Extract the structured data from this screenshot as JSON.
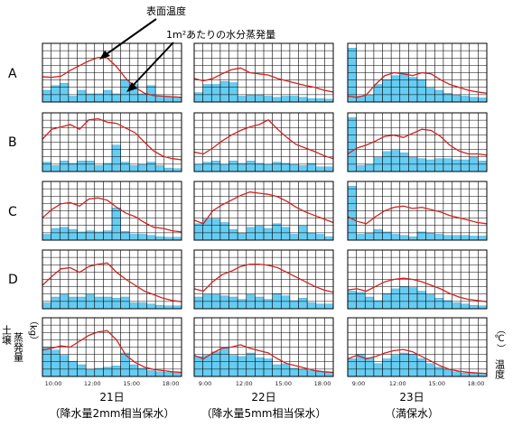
{
  "annotations": {
    "surface_temp": "表面温度",
    "evaporation": "1m²あたりの水分蒸発量"
  },
  "left_axis_label": {
    "line1": "土壌",
    "line2": "蒸発量",
    "unit": "（kg）"
  },
  "right_axis_label": {
    "line1": "温度",
    "unit": "（℃）"
  },
  "colors": {
    "bar": "#66ccf2",
    "bar_edge": "#2f9fd6",
    "line": "#d42020",
    "grid": "#000000"
  },
  "chart_data": {
    "type": "bar+line small multiples",
    "rows": [
      "A",
      "B",
      "C",
      "D",
      ""
    ],
    "columns": [
      {
        "date": "21日",
        "condition": "（降水量2mm相当保水）",
        "x_ticks": [
          "10:00",
          "12:00",
          "15:00",
          "18:00"
        ]
      },
      {
        "date": "22日",
        "condition": "（降水量5mm相当保水）",
        "x_ticks": [
          "9:00",
          "12:00",
          "15:00",
          "18:00"
        ]
      },
      {
        "date": "23日",
        "condition": "（満保水）",
        "x_ticks": [
          "9:00",
          "12:00",
          "15:00",
          "18:00"
        ]
      }
    ],
    "panels": [
      [
        {
          "bars": [
            0.2,
            0.28,
            0.32,
            0.1,
            0.2,
            0.14,
            0.14,
            0.2,
            0.14,
            0.38,
            0.3,
            0.14,
            0.28,
            0.1,
            0.08,
            0.08
          ],
          "line": [
            0.43,
            0.42,
            0.44,
            0.54,
            0.62,
            0.7,
            0.76,
            0.75,
            0.6,
            0.4,
            0.25,
            0.15,
            0.11,
            0.1,
            0.09,
            0.08
          ]
        },
        {
          "bars": [
            0.16,
            0.3,
            0.3,
            0.35,
            0.33,
            0.1,
            0.12,
            0.12,
            0.1,
            0.08,
            0.1,
            0.1,
            0.08,
            0.06,
            0.06,
            0.05
          ],
          "line": [
            0.4,
            0.36,
            0.4,
            0.48,
            0.55,
            0.58,
            0.5,
            0.48,
            0.46,
            0.4,
            0.36,
            0.32,
            0.28,
            0.25,
            0.2,
            0.17
          ]
        },
        {
          "bars": [
            0.92,
            0.1,
            0.12,
            0.3,
            0.38,
            0.45,
            0.5,
            0.42,
            0.38,
            0.25,
            0.2,
            0.15,
            0.12,
            0.1,
            0.08,
            0.07
          ],
          "line": [
            0.1,
            0.08,
            0.12,
            0.3,
            0.45,
            0.5,
            0.48,
            0.45,
            0.5,
            0.48,
            0.38,
            0.3,
            0.25,
            0.2,
            0.17,
            0.15
          ]
        }
      ],
      [
        {
          "bars": [
            0.16,
            0.1,
            0.18,
            0.14,
            0.18,
            0.18,
            0.1,
            0.14,
            0.45,
            0.16,
            0.1,
            0.12,
            0.16,
            0.1,
            0.06,
            0.05
          ],
          "line": [
            0.55,
            0.72,
            0.76,
            0.8,
            0.72,
            0.88,
            0.9,
            0.84,
            0.82,
            0.74,
            0.66,
            0.5,
            0.35,
            0.26,
            0.22,
            0.2
          ]
        },
        {
          "bars": [
            0.12,
            0.16,
            0.18,
            0.12,
            0.18,
            0.14,
            0.18,
            0.14,
            0.12,
            0.16,
            0.14,
            0.12,
            0.1,
            0.14,
            0.08,
            0.08
          ],
          "line": [
            0.33,
            0.3,
            0.4,
            0.52,
            0.62,
            0.7,
            0.76,
            0.8,
            0.88,
            0.72,
            0.58,
            0.46,
            0.4,
            0.34,
            0.27,
            0.22
          ]
        },
        {
          "bars": [
            0.92,
            0.1,
            0.12,
            0.25,
            0.34,
            0.36,
            0.32,
            0.24,
            0.22,
            0.2,
            0.22,
            0.22,
            0.2,
            0.2,
            0.24,
            0.18
          ],
          "line": [
            0.3,
            0.4,
            0.45,
            0.52,
            0.6,
            0.62,
            0.58,
            0.65,
            0.72,
            0.7,
            0.6,
            0.45,
            0.35,
            0.3,
            0.3,
            0.28
          ]
        }
      ],
      [
        {
          "bars": [
            0.1,
            0.2,
            0.22,
            0.18,
            0.14,
            0.16,
            0.14,
            0.16,
            0.55,
            0.15,
            0.1,
            0.1,
            0.08,
            0.06,
            0.05,
            0.05
          ],
          "line": [
            0.38,
            0.52,
            0.62,
            0.64,
            0.58,
            0.7,
            0.72,
            0.68,
            0.56,
            0.46,
            0.4,
            0.3,
            0.22,
            0.2,
            0.16,
            0.14
          ]
        },
        {
          "bars": [
            0.28,
            0.36,
            0.36,
            0.3,
            0.18,
            0.12,
            0.22,
            0.24,
            0.2,
            0.28,
            0.22,
            0.1,
            0.24,
            0.12,
            0.1,
            0.06
          ],
          "line": [
            0.34,
            0.28,
            0.5,
            0.6,
            0.68,
            0.76,
            0.82,
            0.8,
            0.78,
            0.74,
            0.66,
            0.56,
            0.48,
            0.42,
            0.36,
            0.3
          ]
        },
        {
          "bars": [
            0.92,
            0.1,
            0.12,
            0.18,
            0.14,
            0.1,
            0.08,
            0.06,
            0.14,
            0.12,
            0.1,
            0.08,
            0.08,
            0.08,
            0.07,
            0.07
          ],
          "line": [
            0.4,
            0.32,
            0.28,
            0.4,
            0.5,
            0.56,
            0.58,
            0.54,
            0.56,
            0.52,
            0.48,
            0.42,
            0.38,
            0.34,
            0.3,
            0.28
          ]
        }
      ],
      [
        {
          "bars": [
            0.1,
            0.2,
            0.24,
            0.2,
            0.2,
            0.24,
            0.2,
            0.2,
            0.18,
            0.2,
            0.1,
            0.1,
            0.08,
            0.06,
            0.05,
            0.05
          ],
          "line": [
            0.4,
            0.55,
            0.68,
            0.7,
            0.62,
            0.72,
            0.76,
            0.78,
            0.62,
            0.5,
            0.4,
            0.3,
            0.24,
            0.18,
            0.14,
            0.12
          ]
        },
        {
          "bars": [
            0.2,
            0.24,
            0.24,
            0.22,
            0.2,
            0.16,
            0.24,
            0.2,
            0.16,
            0.26,
            0.22,
            0.14,
            0.18,
            0.1,
            0.08,
            0.08
          ],
          "line": [
            0.34,
            0.3,
            0.46,
            0.58,
            0.64,
            0.72,
            0.76,
            0.76,
            0.74,
            0.7,
            0.62,
            0.54,
            0.46,
            0.38,
            0.32,
            0.28
          ]
        },
        {
          "bars": [
            0.3,
            0.28,
            0.2,
            0.14,
            0.26,
            0.34,
            0.38,
            0.36,
            0.3,
            0.24,
            0.18,
            0.14,
            0.1,
            0.08,
            0.06,
            0.05
          ],
          "line": [
            0.32,
            0.34,
            0.3,
            0.38,
            0.46,
            0.5,
            0.52,
            0.5,
            0.46,
            0.4,
            0.34,
            0.26,
            0.2,
            0.16,
            0.14,
            0.12
          ]
        }
      ],
      [
        {
          "bars": [
            0.5,
            0.45,
            0.36,
            0.26,
            0.2,
            0.12,
            0.14,
            0.16,
            0.18,
            0.4,
            0.2,
            0.14,
            0.1,
            0.08,
            0.07,
            0.06
          ],
          "line": [
            0.45,
            0.48,
            0.52,
            0.5,
            0.6,
            0.7,
            0.76,
            0.78,
            0.62,
            0.36,
            0.24,
            0.16,
            0.12,
            0.1,
            0.08,
            0.07
          ]
        },
        {
          "bars": [
            0.34,
            0.36,
            0.42,
            0.48,
            0.36,
            0.34,
            0.4,
            0.32,
            0.3,
            0.2,
            0.22,
            0.14,
            0.12,
            0.1,
            0.08,
            0.07
          ],
          "line": [
            0.36,
            0.3,
            0.4,
            0.48,
            0.5,
            0.54,
            0.48,
            0.44,
            0.4,
            0.3,
            0.22,
            0.18,
            0.14,
            0.1,
            0.08,
            0.07
          ]
        },
        {
          "bars": [
            0.3,
            0.38,
            0.32,
            0.22,
            0.3,
            0.36,
            0.4,
            0.38,
            0.3,
            0.22,
            0.16,
            0.12,
            0.08,
            0.06,
            0.05,
            0.05
          ],
          "line": [
            0.3,
            0.36,
            0.3,
            0.34,
            0.4,
            0.44,
            0.46,
            0.42,
            0.34,
            0.26,
            0.18,
            0.12,
            0.09,
            0.07,
            0.06,
            0.05
          ]
        }
      ]
    ]
  }
}
